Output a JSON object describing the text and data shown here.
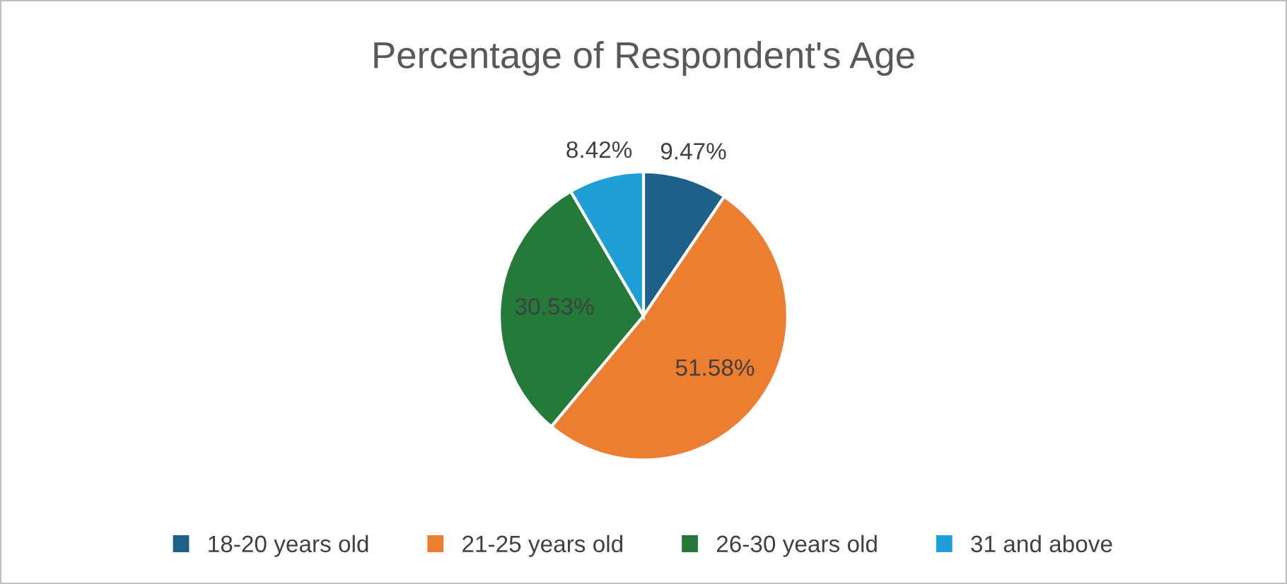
{
  "chart_data": {
    "type": "pie",
    "title": "Percentage of Respondent's Age",
    "categories": [
      "18-20 years old",
      "21-25 years old",
      "26-30 years old",
      "31 and above"
    ],
    "values": [
      9.47,
      51.58,
      30.53,
      8.42
    ],
    "colors": [
      "#1f6088",
      "#ed7d31",
      "#237a39",
      "#1ea0d6"
    ],
    "value_labels": [
      "9.47%",
      "51.58%",
      "30.53%",
      "8.42%"
    ],
    "legend": "bottom"
  }
}
